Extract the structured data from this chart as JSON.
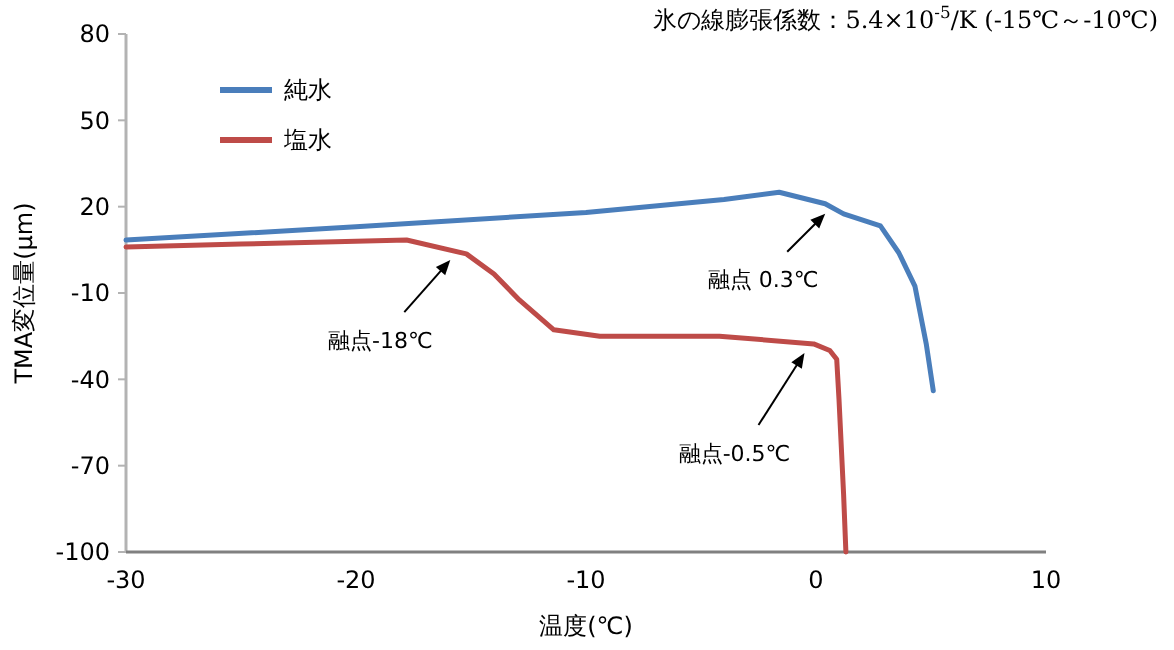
{
  "chart_data": {
    "type": "line",
    "title": "氷の線膨張係数：5.4×10$^{-5}$/K (-15℃～-10℃)",
    "xlabel": "温度(℃)",
    "ylabel": "TMA変位量(μm)",
    "xlim": [
      -30,
      10
    ],
    "xticks": [
      -30,
      -20,
      -10,
      0,
      10
    ],
    "ylim": [
      -100,
      80
    ],
    "yticks": [
      -100,
      -70,
      -40,
      -10,
      20,
      50,
      80
    ],
    "grid": false,
    "legend": "top left",
    "marker": "none",
    "line_style": "solid",
    "series": [
      {
        "name": "純水",
        "color": "#4a7ebb",
        "x": [
          -30,
          -20,
          -10,
          -4,
          -1.6,
          0.4,
          1.2,
          2.8,
          3.6,
          4.3,
          4.8,
          5.1
        ],
        "values": [
          8.4,
          13,
          18,
          22.5,
          25,
          21,
          17.5,
          13.3,
          4,
          -7.6,
          -28,
          -44
        ]
      },
      {
        "name": "塩水",
        "color": "#be4b48",
        "x": [
          -30,
          -25,
          -17.8,
          -15.2,
          -14,
          -12.9,
          -11.4,
          -9.4,
          -4.2,
          -0.1,
          0.6,
          0.9,
          1.0,
          1.2,
          1.3
        ],
        "values": [
          6,
          7,
          8.4,
          3.6,
          -3.4,
          -12.4,
          -22.8,
          -25,
          -25,
          -27.7,
          -30,
          -33,
          -47,
          -80,
          -100
        ]
      }
    ],
    "annotations": [
      {
        "text": "融点-18℃",
        "x": -15.9,
        "y": 4.9
      },
      {
        "text": "融点 0.3℃",
        "x": 0.4,
        "y": 21
      },
      {
        "text": "融点-0.5℃",
        "x": -0.5,
        "y": -27.4
      }
    ]
  }
}
